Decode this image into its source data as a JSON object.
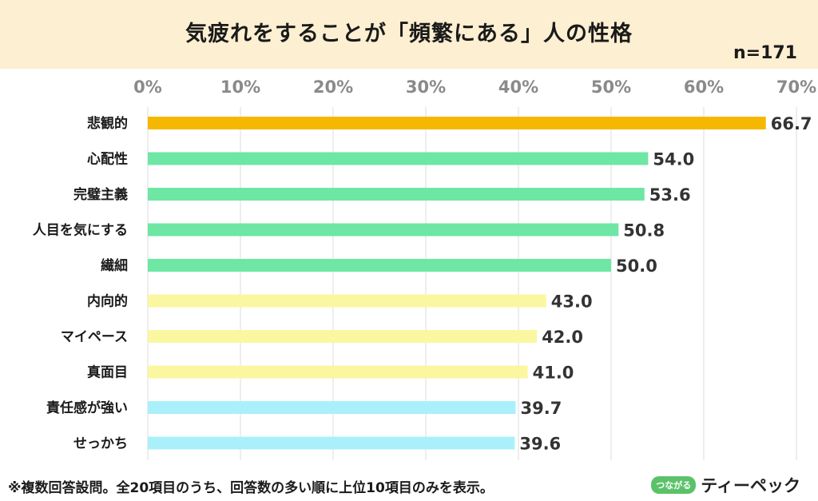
{
  "title": "気疲れをすることが「頻繁にある」人の性格",
  "sample_size": "n=171",
  "footnote": "※複数回答設問。全20項目のうち、回答数の多い順に上位10項目のみを表示。",
  "logo": {
    "badge": "つながる",
    "name": "ティーペック"
  },
  "colors": {
    "orange": "#f5b800",
    "green": "#6ee6a4",
    "yellow": "#fbf7a0",
    "blue": "#aaf0fa",
    "grid": "#dddddd",
    "axis_text": "#8a8a8a"
  },
  "chart_data": {
    "type": "bar",
    "orientation": "horizontal",
    "title": "気疲れをすることが「頻繁にある」人の性格",
    "xlabel": "",
    "ylabel": "",
    "xlim": [
      0,
      70
    ],
    "x_ticks": [
      "0%",
      "10%",
      "20%",
      "30%",
      "40%",
      "50%",
      "60%",
      "70%"
    ],
    "grid": true,
    "categories": [
      "悲観的",
      "心配性",
      "完璧主義",
      "人目を気にする",
      "繊細",
      "内向的",
      "マイペース",
      "真面目",
      "責任感が強い",
      "せっかち"
    ],
    "values": [
      66.7,
      54.0,
      53.6,
      50.8,
      50.0,
      43.0,
      42.0,
      41.0,
      39.7,
      39.6
    ],
    "value_labels": [
      "66.7",
      "54.0",
      "53.6",
      "50.8",
      "50.0",
      "43.0",
      "42.0",
      "41.0",
      "39.7",
      "39.6"
    ],
    "bar_colors": [
      "#f5b800",
      "#6ee6a4",
      "#6ee6a4",
      "#6ee6a4",
      "#6ee6a4",
      "#fbf7a0",
      "#fbf7a0",
      "#fbf7a0",
      "#aaf0fa",
      "#aaf0fa"
    ]
  }
}
